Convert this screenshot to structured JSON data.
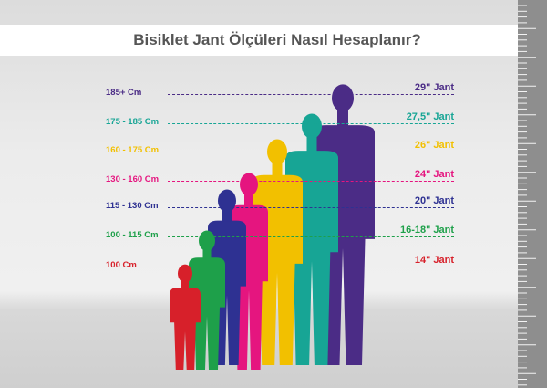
{
  "title": "Bisiklet Jant Ölçüleri Nasıl Hesaplanır?",
  "rows": [
    {
      "height": "185+ Cm",
      "rim": "29\" Jant",
      "color": "#4b2c86"
    },
    {
      "height": "175 - 185 Cm",
      "rim": "27,5\" Jant",
      "color": "#17a595"
    },
    {
      "height": "160 - 175 Cm",
      "rim": "26\" Jant",
      "color": "#f2c000"
    },
    {
      "height": "130 - 160 Cm",
      "rim": "24\" Jant",
      "color": "#e5157f"
    },
    {
      "height": "115 - 130 Cm",
      "rim": "20\" Jant",
      "color": "#2e3192"
    },
    {
      "height": "100 - 115 Cm",
      "rim": "16-18\" Jant",
      "color": "#1ea04a"
    },
    {
      "height": "100 Cm",
      "rim": "14\" Jant",
      "color": "#d7202a"
    }
  ]
}
